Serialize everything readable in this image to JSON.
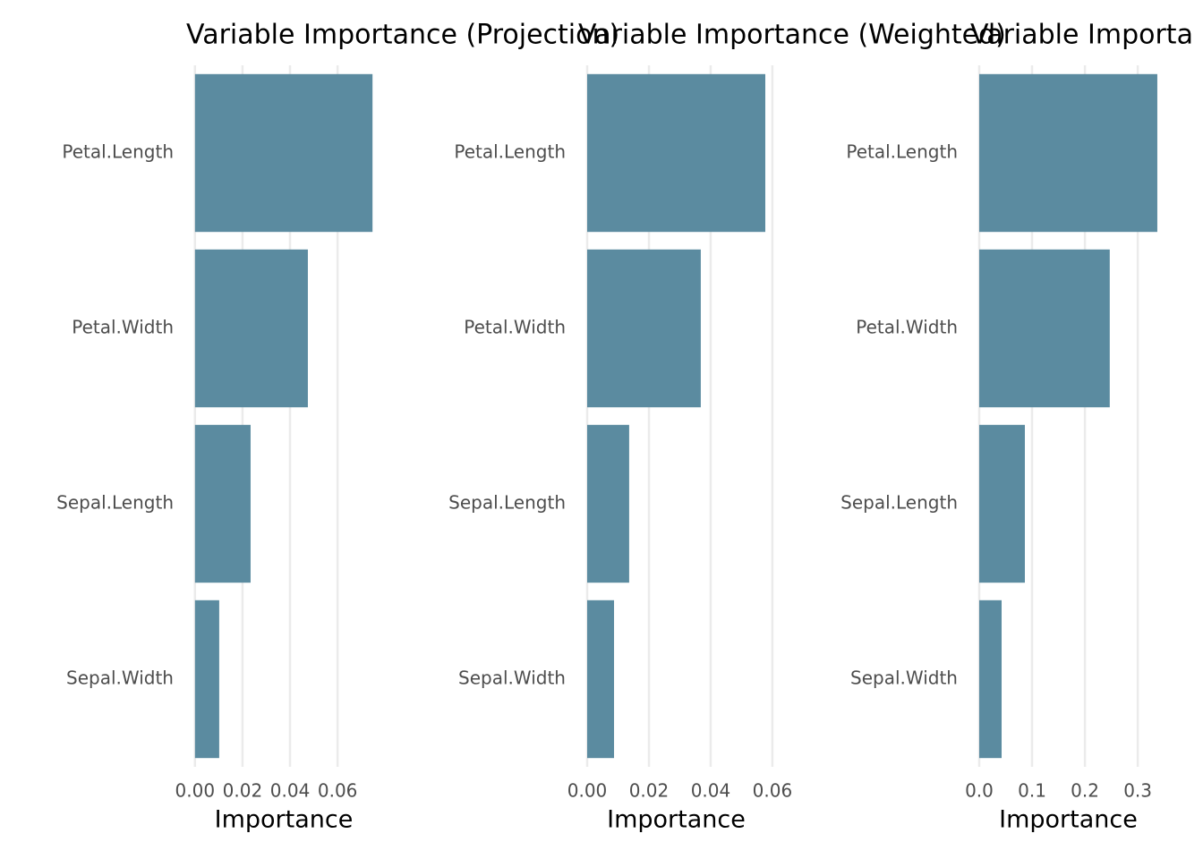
{
  "chart_data": [
    {
      "type": "bar",
      "orientation": "horizontal",
      "title": "Variable Importance (Projection)",
      "x_label": "Importance",
      "categories": [
        "Petal.Length",
        "Petal.Width",
        "Sepal.Length",
        "Sepal.Width"
      ],
      "values": [
        0.0747,
        0.0475,
        0.0234,
        0.0102
      ],
      "color": "#5b8ba0",
      "xlim": [
        -0.0037,
        0.0784
      ],
      "xticks": [
        {
          "value": 0,
          "label": "0.00"
        },
        0.02,
        0.04,
        0.06
      ],
      "grid": true
    },
    {
      "type": "bar",
      "orientation": "horizontal",
      "title": "Variable Importance (Weighted)",
      "x_label": "Importance",
      "categories": [
        "Petal.Length",
        "Petal.Width",
        "Sepal.Length",
        "Sepal.Width"
      ],
      "values": [
        0.0577,
        0.0368,
        0.0136,
        0.0087
      ],
      "color": "#5b8ba0",
      "xlim": [
        -0.0029,
        0.0606
      ],
      "xticks": [
        {
          "value": 0,
          "label": "0.00"
        },
        0.02,
        0.04,
        0.06
      ],
      "grid": true
    },
    {
      "type": "bar",
      "orientation": "horizontal",
      "title": "Variable Importa",
      "x_label": "Importance",
      "categories": [
        "Petal.Length",
        "Petal.Width",
        "Sepal.Length",
        "Sepal.Width"
      ],
      "values": [
        0.337,
        0.247,
        0.0864,
        0.0424
      ],
      "color": "#5b8ba0",
      "xlim": [
        -0.0169,
        0.354
      ],
      "xticks": [
        {
          "value": 0,
          "label": "0.0"
        },
        0.1,
        0.2,
        0.3
      ],
      "grid": true
    }
  ]
}
